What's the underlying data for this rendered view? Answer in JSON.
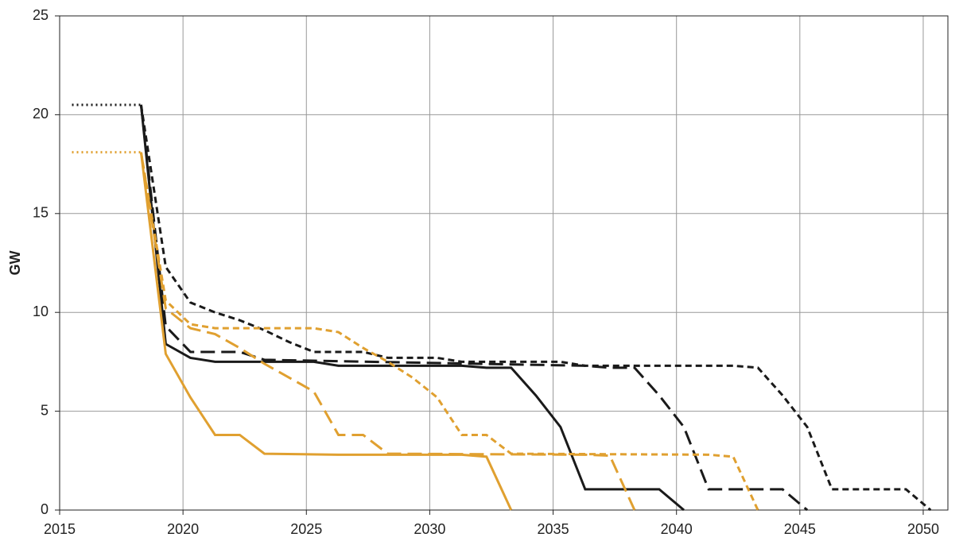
{
  "chart_data": {
    "type": "line",
    "ylabel": "GW",
    "xlim": [
      2015,
      2051
    ],
    "xticks": [
      2015,
      2020,
      2025,
      2030,
      2035,
      2040,
      2045,
      2050
    ],
    "ylim": [
      0,
      25
    ],
    "yticks": [
      0,
      5,
      10,
      15,
      20,
      25
    ],
    "grid": true,
    "series": [
      {
        "color": "#1a1a1a",
        "style": "dotted",
        "x": [
          2015.5,
          2018.3
        ],
        "values": [
          20.5,
          20.5
        ]
      },
      {
        "color": "#e0a030",
        "style": "dotted",
        "x": [
          2015.5,
          2018.3
        ],
        "values": [
          18.1,
          18.1
        ]
      },
      {
        "color": "#1a1a1a",
        "style": "solid",
        "x": [
          2018.3,
          2019.3,
          2020.3,
          2021.3,
          2025.3,
          2026.3,
          2031.3,
          2032.3,
          2033.3,
          2034.3,
          2035.3,
          2036.3,
          2039.3,
          2040.3
        ],
        "values": [
          20.5,
          8.4,
          7.7,
          7.5,
          7.5,
          7.3,
          7.3,
          7.2,
          7.2,
          5.8,
          4.2,
          1.05,
          1.05,
          0
        ]
      },
      {
        "color": "#1a1a1a",
        "style": "long-dashed",
        "x": [
          2018.3,
          2019.3,
          2020.3,
          2022.3,
          2023.3,
          2036.3,
          2037.3,
          2038.3,
          2039.3,
          2040.3,
          2041.3,
          2044.3,
          2045.3
        ],
        "values": [
          20.5,
          9.3,
          8.0,
          8.0,
          7.6,
          7.3,
          7.2,
          7.2,
          5.8,
          4.2,
          1.05,
          1.05,
          0
        ]
      },
      {
        "color": "#1a1a1a",
        "style": "dashed",
        "x": [
          2018.3,
          2019.3,
          2020.3,
          2021.3,
          2022.3,
          2023.3,
          2024.3,
          2025.3,
          2027.3,
          2028.3,
          2030.3,
          2031.3,
          2035.3,
          2036.3,
          2042.3,
          2043.3,
          2044.3,
          2045.3,
          2046.3,
          2049.3,
          2050.3
        ],
        "values": [
          20.5,
          12.3,
          10.5,
          10.0,
          9.6,
          9.1,
          8.5,
          8.0,
          8.0,
          7.7,
          7.7,
          7.5,
          7.5,
          7.3,
          7.3,
          7.2,
          5.8,
          4.2,
          1.05,
          1.05,
          0
        ]
      },
      {
        "color": "#e0a030",
        "style": "solid",
        "x": [
          2018.3,
          2019.3,
          2020.3,
          2021.3,
          2022.3,
          2023.3,
          2026.3,
          2031.3,
          2032.3,
          2033.3
        ],
        "values": [
          18.1,
          7.9,
          5.7,
          3.8,
          3.8,
          2.85,
          2.8,
          2.8,
          2.7,
          0
        ]
      },
      {
        "color": "#e0a030",
        "style": "long-dashed",
        "x": [
          2018.3,
          2019.3,
          2020.3,
          2021.3,
          2022.3,
          2023.3,
          2024.3,
          2025.3,
          2026.3,
          2027.3,
          2028.3,
          2036.3,
          2037.3,
          2038.3
        ],
        "values": [
          18.1,
          10.2,
          9.2,
          8.9,
          8.2,
          7.4,
          6.7,
          6.0,
          3.8,
          3.8,
          2.85,
          2.8,
          2.75,
          0
        ]
      },
      {
        "color": "#e0a030",
        "style": "dashed",
        "x": [
          2018.3,
          2019.3,
          2020.3,
          2021.3,
          2025.3,
          2026.3,
          2027.3,
          2028.3,
          2029.3,
          2030.3,
          2031.3,
          2032.3,
          2033.3,
          2041.3,
          2042.3,
          2043.3
        ],
        "values": [
          18.1,
          10.6,
          9.4,
          9.2,
          9.2,
          9.0,
          8.2,
          7.5,
          6.7,
          5.7,
          3.8,
          3.8,
          2.85,
          2.8,
          2.7,
          0
        ]
      }
    ]
  }
}
